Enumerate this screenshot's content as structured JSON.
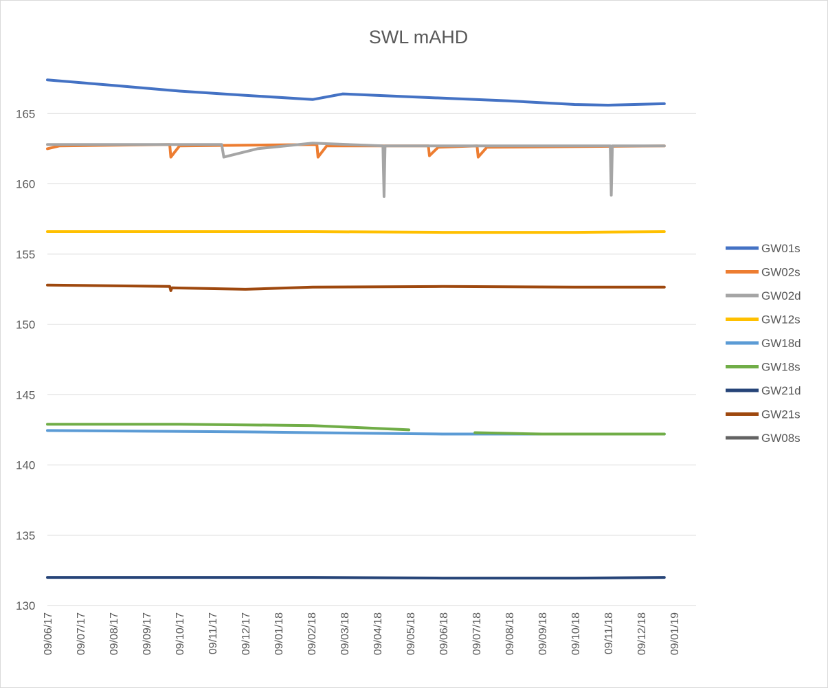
{
  "chart_data": {
    "type": "line",
    "title": "SWL mAHD",
    "xlabel": "",
    "ylabel": "",
    "ylim": [
      130,
      170
    ],
    "yticks": [
      130,
      135,
      140,
      145,
      150,
      155,
      160,
      165
    ],
    "xlim": [
      "2017-06-09",
      "2019-01-09"
    ],
    "x_ticks": [
      "09/06/17",
      "09/07/17",
      "09/08/17",
      "09/09/17",
      "09/10/17",
      "09/11/17",
      "09/12/17",
      "09/01/18",
      "09/02/18",
      "09/03/18",
      "09/04/18",
      "09/05/18",
      "09/06/18",
      "09/07/18",
      "09/08/18",
      "09/09/18",
      "09/10/18",
      "09/11/18",
      "09/12/18",
      "09/01/19"
    ],
    "grid": true,
    "legend_position": "right",
    "series": [
      {
        "name": "GW01s",
        "color": "#4472C4",
        "x": [
          "2017-06-09",
          "2017-08-09",
          "2017-10-09",
          "2017-12-09",
          "2018-02-09",
          "2018-03-09",
          "2018-04-09",
          "2018-06-09",
          "2018-08-09",
          "2018-10-09",
          "2018-11-09",
          "2018-12-31"
        ],
        "values": [
          167.4,
          167.0,
          166.6,
          166.3,
          166.0,
          166.4,
          166.3,
          166.1,
          165.9,
          165.65,
          165.6,
          165.7
        ]
      },
      {
        "name": "GW02s",
        "color": "#ED7D31",
        "x": [
          "2017-06-09",
          "2017-06-20",
          "2017-09-30",
          "2017-10-01",
          "2017-10-09",
          "2018-02-13",
          "2018-02-14",
          "2018-02-22",
          "2018-05-27",
          "2018-05-28",
          "2018-06-05",
          "2018-07-11",
          "2018-07-12",
          "2018-07-20",
          "2018-12-31"
        ],
        "values": [
          162.5,
          162.7,
          162.8,
          161.9,
          162.7,
          162.8,
          161.9,
          162.7,
          162.7,
          162.0,
          162.6,
          162.7,
          161.9,
          162.6,
          162.7
        ]
      },
      {
        "name": "GW02d",
        "color": "#A5A5A5",
        "x": [
          "2017-06-09",
          "2017-09-09",
          "2017-11-17",
          "2017-11-19",
          "2017-12-20",
          "2018-02-09",
          "2018-04-15",
          "2018-04-16",
          "2018-04-17",
          "2018-06-09",
          "2018-11-11",
          "2018-11-12",
          "2018-11-13",
          "2018-12-31"
        ],
        "values": [
          162.8,
          162.8,
          162.8,
          161.9,
          162.5,
          162.9,
          162.7,
          159.1,
          162.7,
          162.7,
          162.7,
          159.2,
          162.7,
          162.7
        ]
      },
      {
        "name": "GW12s",
        "color": "#FFC000",
        "x": [
          "2017-06-09",
          "2017-11-09",
          "2018-02-09",
          "2018-06-09",
          "2018-10-09",
          "2018-12-31"
        ],
        "values": [
          156.6,
          156.6,
          156.6,
          156.55,
          156.55,
          156.6
        ]
      },
      {
        "name": "GW18d",
        "color": "#5B9BD5",
        "x": [
          "2017-06-09",
          "2017-09-09",
          "2017-12-09",
          "2018-02-09",
          "2018-04-09",
          "2018-06-09",
          "2018-09-09",
          "2018-12-31"
        ],
        "values": [
          142.45,
          142.4,
          142.35,
          142.3,
          142.25,
          142.2,
          142.2,
          142.2
        ]
      },
      {
        "name": "GW18s",
        "color": "#70AD47",
        "x": [
          "2017-06-09",
          "2017-10-09",
          "2018-02-09",
          "2018-04-09",
          "2018-05-09",
          "2018-05-10",
          "2018-07-09",
          "2018-09-09",
          "2018-10-09",
          "2018-12-31"
        ],
        "values": [
          142.9,
          142.9,
          142.8,
          142.6,
          142.5,
          null,
          142.3,
          142.2,
          142.2,
          142.2
        ]
      },
      {
        "name": "GW21d",
        "color": "#264478",
        "x": [
          "2017-06-09",
          "2017-10-09",
          "2018-02-09",
          "2018-06-09",
          "2018-10-09",
          "2018-12-31"
        ],
        "values": [
          132.0,
          132.0,
          132.0,
          131.95,
          131.95,
          132.0
        ]
      },
      {
        "name": "GW21s",
        "color": "#9E480E",
        "x": [
          "2017-06-09",
          "2017-09-30",
          "2017-10-01",
          "2017-10-02",
          "2017-12-09",
          "2018-02-09",
          "2018-06-09",
          "2018-10-09",
          "2018-12-31"
        ],
        "values": [
          152.8,
          152.7,
          152.4,
          152.6,
          152.5,
          152.65,
          152.7,
          152.65,
          152.65
        ]
      },
      {
        "name": "GW08s",
        "color": "#636363",
        "x": [],
        "values": []
      }
    ]
  }
}
